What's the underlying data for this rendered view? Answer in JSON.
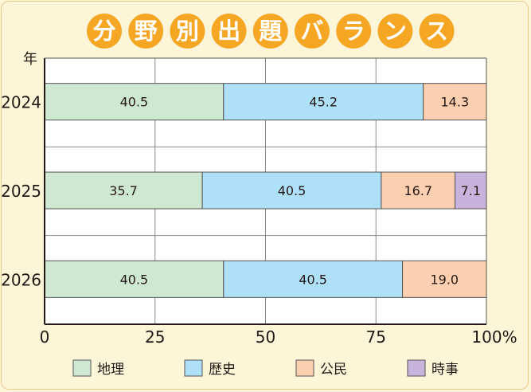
{
  "title_chars": [
    "分",
    "野",
    "別",
    "出",
    "題",
    "バ",
    "ラ",
    "ン",
    "ス"
  ],
  "colors": {
    "background": "#fdf5d8",
    "title_circle": "#f5a623",
    "title_text": "#ffffff",
    "axis": "#231815",
    "grid": "#888888"
  },
  "chart_data": {
    "type": "bar",
    "orientation": "horizontal",
    "stacked": true,
    "title": "分野別出題バランス",
    "ylabel": "年",
    "categories": [
      "2024",
      "2025",
      "2026"
    ],
    "series": [
      {
        "name": "地理",
        "color": "#cfe8d2",
        "values": [
          40.5,
          35.7,
          40.5
        ]
      },
      {
        "name": "歴史",
        "color": "#aee0f8",
        "values": [
          45.2,
          40.5,
          40.5
        ]
      },
      {
        "name": "公民",
        "color": "#fbcfb0",
        "values": [
          14.3,
          16.7,
          19.0
        ]
      },
      {
        "name": "時事",
        "color": "#c8b3da",
        "values": [
          0,
          7.1,
          0
        ]
      }
    ],
    "xlim": [
      0,
      100
    ],
    "xticks": [
      0,
      25,
      50,
      75,
      100
    ],
    "xtick_labels": [
      "0",
      "25",
      "50",
      "75",
      "100%"
    ],
    "grid": true,
    "legend_position": "bottom"
  }
}
